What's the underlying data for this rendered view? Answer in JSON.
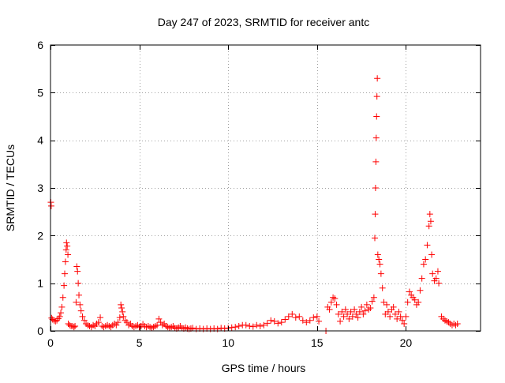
{
  "chart_data": {
    "type": "scatter",
    "title": "Day 247 of 2023, SRMTID for receiver antc",
    "xlabel": "GPS time / hours",
    "ylabel": "SRMTID / TECUs",
    "xlim": [
      0,
      24.2
    ],
    "ylim": [
      0,
      6
    ],
    "xticks": [
      0,
      5,
      10,
      15,
      20
    ],
    "yticks": [
      0,
      1,
      2,
      3,
      4,
      5,
      6
    ],
    "xtick_labels": [
      "0",
      "5",
      "10",
      "15",
      "20"
    ],
    "ytick_labels": [
      "0",
      "1",
      "2",
      "3",
      "4",
      "5",
      "6"
    ],
    "grid": true,
    "marker": "+",
    "color": "#ff0000",
    "series": [
      {
        "name": "SRMTID",
        "points": [
          [
            0.02,
            2.7
          ],
          [
            0.04,
            2.62
          ],
          [
            0.06,
            0.27
          ],
          [
            0.12,
            0.24
          ],
          [
            0.2,
            0.22
          ],
          [
            0.28,
            0.2
          ],
          [
            0.36,
            0.22
          ],
          [
            0.44,
            0.26
          ],
          [
            0.52,
            0.3
          ],
          [
            0.58,
            0.38
          ],
          [
            0.64,
            0.5
          ],
          [
            0.7,
            0.7
          ],
          [
            0.76,
            0.95
          ],
          [
            0.8,
            1.2
          ],
          [
            0.84,
            1.45
          ],
          [
            0.88,
            1.7
          ],
          [
            0.9,
            1.85
          ],
          [
            0.94,
            1.78
          ],
          [
            0.98,
            1.6
          ],
          [
            1.0,
            0.15
          ],
          [
            1.08,
            0.12
          ],
          [
            1.16,
            0.1
          ],
          [
            1.24,
            0.1
          ],
          [
            1.32,
            0.08
          ],
          [
            1.38,
            0.1
          ],
          [
            1.44,
            0.6
          ],
          [
            1.48,
            1.35
          ],
          [
            1.52,
            1.25
          ],
          [
            1.56,
            1.0
          ],
          [
            1.6,
            0.75
          ],
          [
            1.66,
            0.55
          ],
          [
            1.72,
            0.42
          ],
          [
            1.8,
            0.3
          ],
          [
            1.9,
            0.22
          ],
          [
            2.0,
            0.15
          ],
          [
            2.1,
            0.12
          ],
          [
            2.2,
            0.1
          ],
          [
            2.3,
            0.08
          ],
          [
            2.4,
            0.12
          ],
          [
            2.5,
            0.1
          ],
          [
            2.6,
            0.15
          ],
          [
            2.7,
            0.18
          ],
          [
            2.8,
            0.28
          ],
          [
            2.9,
            0.1
          ],
          [
            3.0,
            0.08
          ],
          [
            3.1,
            0.1
          ],
          [
            3.2,
            0.12
          ],
          [
            3.3,
            0.1
          ],
          [
            3.4,
            0.08
          ],
          [
            3.5,
            0.12
          ],
          [
            3.6,
            0.15
          ],
          [
            3.7,
            0.12
          ],
          [
            3.8,
            0.18
          ],
          [
            3.9,
            0.28
          ],
          [
            3.96,
            0.55
          ],
          [
            4.0,
            0.48
          ],
          [
            4.05,
            0.4
          ],
          [
            4.1,
            0.3
          ],
          [
            4.2,
            0.22
          ],
          [
            4.3,
            0.18
          ],
          [
            4.4,
            0.12
          ],
          [
            4.5,
            0.15
          ],
          [
            4.6,
            0.1
          ],
          [
            4.7,
            0.08
          ],
          [
            4.8,
            0.1
          ],
          [
            4.9,
            0.12
          ],
          [
            5.0,
            0.08
          ],
          [
            5.1,
            0.1
          ],
          [
            5.2,
            0.14
          ],
          [
            5.3,
            0.1
          ],
          [
            5.4,
            0.08
          ],
          [
            5.5,
            0.1
          ],
          [
            5.6,
            0.08
          ],
          [
            5.7,
            0.06
          ],
          [
            5.8,
            0.08
          ],
          [
            5.9,
            0.1
          ],
          [
            6.0,
            0.12
          ],
          [
            6.1,
            0.25
          ],
          [
            6.2,
            0.18
          ],
          [
            6.3,
            0.12
          ],
          [
            6.4,
            0.15
          ],
          [
            6.5,
            0.1
          ],
          [
            6.6,
            0.08
          ],
          [
            6.7,
            0.06
          ],
          [
            6.8,
            0.08
          ],
          [
            6.9,
            0.1
          ],
          [
            7.0,
            0.06
          ],
          [
            7.1,
            0.05
          ],
          [
            7.2,
            0.07
          ],
          [
            7.3,
            0.1
          ],
          [
            7.4,
            0.06
          ],
          [
            7.5,
            0.05
          ],
          [
            7.6,
            0.07
          ],
          [
            7.7,
            0.05
          ],
          [
            7.8,
            0.04
          ],
          [
            7.9,
            0.05
          ],
          [
            8.0,
            0.06
          ],
          [
            8.2,
            0.04
          ],
          [
            8.4,
            0.05
          ],
          [
            8.6,
            0.04
          ],
          [
            8.8,
            0.05
          ],
          [
            9.0,
            0.04
          ],
          [
            9.2,
            0.05
          ],
          [
            9.4,
            0.04
          ],
          [
            9.6,
            0.06
          ],
          [
            9.8,
            0.05
          ],
          [
            10.0,
            0.06
          ],
          [
            10.2,
            0.07
          ],
          [
            10.4,
            0.08
          ],
          [
            10.6,
            0.1
          ],
          [
            10.8,
            0.12
          ],
          [
            11.0,
            0.12
          ],
          [
            11.2,
            0.1
          ],
          [
            11.4,
            0.09
          ],
          [
            11.6,
            0.12
          ],
          [
            11.8,
            0.1
          ],
          [
            12.0,
            0.12
          ],
          [
            12.2,
            0.16
          ],
          [
            12.4,
            0.22
          ],
          [
            12.6,
            0.2
          ],
          [
            12.8,
            0.16
          ],
          [
            13.0,
            0.18
          ],
          [
            13.2,
            0.24
          ],
          [
            13.4,
            0.3
          ],
          [
            13.6,
            0.35
          ],
          [
            13.8,
            0.28
          ],
          [
            14.0,
            0.3
          ],
          [
            14.2,
            0.22
          ],
          [
            14.4,
            0.18
          ],
          [
            14.6,
            0.22
          ],
          [
            14.8,
            0.28
          ],
          [
            15.0,
            0.3
          ],
          [
            15.1,
            0.2
          ],
          [
            15.5,
            0.0
          ],
          [
            15.6,
            0.5
          ],
          [
            15.7,
            0.45
          ],
          [
            15.8,
            0.6
          ],
          [
            15.9,
            0.7
          ],
          [
            16.0,
            0.68
          ],
          [
            16.1,
            0.55
          ],
          [
            16.2,
            0.35
          ],
          [
            16.3,
            0.2
          ],
          [
            16.4,
            0.4
          ],
          [
            16.5,
            0.3
          ],
          [
            16.6,
            0.45
          ],
          [
            16.7,
            0.35
          ],
          [
            16.8,
            0.25
          ],
          [
            16.9,
            0.4
          ],
          [
            17.0,
            0.3
          ],
          [
            17.1,
            0.45
          ],
          [
            17.2,
            0.35
          ],
          [
            17.3,
            0.28
          ],
          [
            17.4,
            0.4
          ],
          [
            17.5,
            0.5
          ],
          [
            17.6,
            0.35
          ],
          [
            17.7,
            0.42
          ],
          [
            17.8,
            0.55
          ],
          [
            17.9,
            0.45
          ],
          [
            18.0,
            0.48
          ],
          [
            18.1,
            0.62
          ],
          [
            18.2,
            0.7
          ],
          [
            18.25,
            1.95
          ],
          [
            18.27,
            2.45
          ],
          [
            18.29,
            3.0
          ],
          [
            18.31,
            3.55
          ],
          [
            18.33,
            4.05
          ],
          [
            18.35,
            4.5
          ],
          [
            18.37,
            4.92
          ],
          [
            18.39,
            5.3
          ],
          [
            18.42,
            1.6
          ],
          [
            18.48,
            1.5
          ],
          [
            18.54,
            1.4
          ],
          [
            18.6,
            1.2
          ],
          [
            18.68,
            0.9
          ],
          [
            18.76,
            0.6
          ],
          [
            18.84,
            0.35
          ],
          [
            18.92,
            0.55
          ],
          [
            19.0,
            0.4
          ],
          [
            19.1,
            0.3
          ],
          [
            19.2,
            0.45
          ],
          [
            19.3,
            0.5
          ],
          [
            19.4,
            0.35
          ],
          [
            19.5,
            0.25
          ],
          [
            19.6,
            0.4
          ],
          [
            19.7,
            0.3
          ],
          [
            19.8,
            0.22
          ],
          [
            19.9,
            0.15
          ],
          [
            20.0,
            0.3
          ],
          [
            20.1,
            0.6
          ],
          [
            20.2,
            0.82
          ],
          [
            20.3,
            0.75
          ],
          [
            20.4,
            0.7
          ],
          [
            20.5,
            0.65
          ],
          [
            20.6,
            0.55
          ],
          [
            20.7,
            0.6
          ],
          [
            20.8,
            0.85
          ],
          [
            20.9,
            1.1
          ],
          [
            21.0,
            1.4
          ],
          [
            21.1,
            1.5
          ],
          [
            21.2,
            1.8
          ],
          [
            21.3,
            2.2
          ],
          [
            21.35,
            2.45
          ],
          [
            21.4,
            2.3
          ],
          [
            21.45,
            1.6
          ],
          [
            21.5,
            1.2
          ],
          [
            21.6,
            1.05
          ],
          [
            21.7,
            1.1
          ],
          [
            21.8,
            1.25
          ],
          [
            21.85,
            1.0
          ],
          [
            22.0,
            0.3
          ],
          [
            22.1,
            0.25
          ],
          [
            22.2,
            0.22
          ],
          [
            22.3,
            0.2
          ],
          [
            22.4,
            0.18
          ],
          [
            22.5,
            0.15
          ],
          [
            22.6,
            0.12
          ],
          [
            22.7,
            0.15
          ],
          [
            22.8,
            0.12
          ],
          [
            22.9,
            0.15
          ]
        ]
      }
    ]
  }
}
